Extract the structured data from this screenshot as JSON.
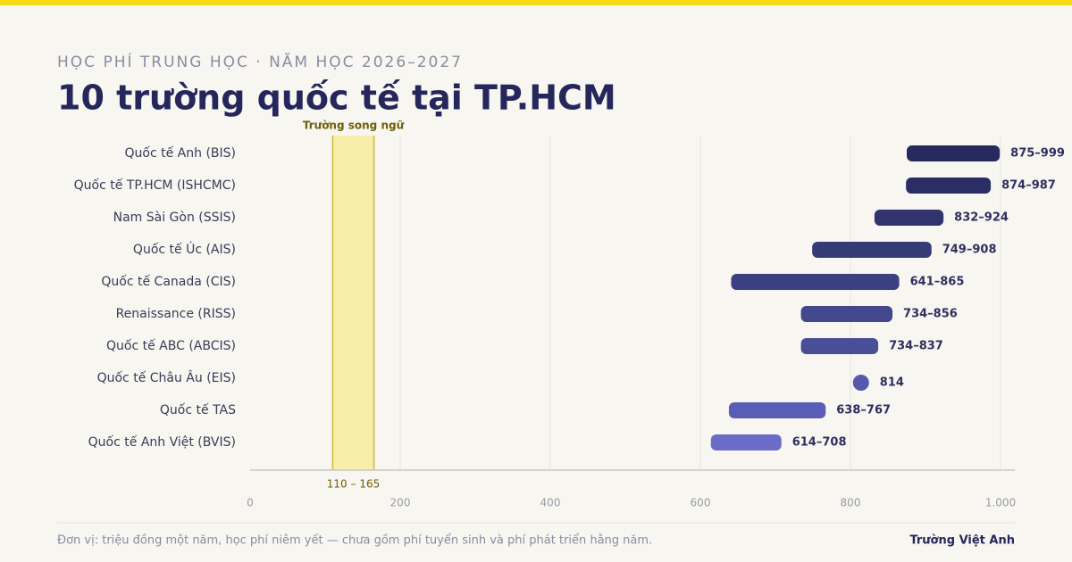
{
  "header": {
    "subtitle": "HỌC PHÍ TRUNG HỌC · NĂM HỌC 2026–2027",
    "title": "10 trường quốc tế tại TP.HCM"
  },
  "chart_data": {
    "type": "range-bar",
    "categories": [
      "Quốc tế Anh (BIS)",
      "Quốc tế TP.HCM (ISHCMC)",
      "Nam Sài Gòn (SSIS)",
      "Quốc tế Úc (AIS)",
      "Quốc tế Canada (CIS)",
      "Renaissance (RISS)",
      "Quốc tế ABC (ABCIS)",
      "Quốc tế Châu Âu (EIS)",
      "Quốc tế TAS",
      "Quốc tế Anh Việt (BVIS)"
    ],
    "low": [
      875,
      874,
      832,
      749,
      641,
      734,
      734,
      814,
      638,
      614
    ],
    "high": [
      999,
      987,
      924,
      908,
      865,
      856,
      837,
      null,
      767,
      708
    ],
    "value_labels": [
      "875–999",
      "874–987",
      "832–924",
      "749–908",
      "641–865",
      "734–856",
      "734–837",
      "814",
      "638–767",
      "614–708"
    ],
    "colors": [
      "#262a5e",
      "#2b2e66",
      "#30336d",
      "#363a77",
      "#3c3f80",
      "#43478b",
      "#4a4e96",
      "#5558ad",
      "#5a5db8",
      "#6a6cc8"
    ],
    "xlim": [
      0,
      1000
    ],
    "xticks": [
      0,
      200,
      400,
      600,
      800,
      {
        "value": 1000,
        "label": "1.000"
      }
    ],
    "grid": true,
    "reference_band": {
      "label": "Trường song ngữ",
      "range": [
        110,
        165
      ],
      "range_label": "110 – 165",
      "color": "#f6eeaa"
    }
  },
  "footer": {
    "note": "Đơn vị: triệu đồng một năm, học phí niêm yết — chưa gồm phí tuyển sinh và phí phát triển hằng năm.",
    "source": "Trường Việt Anh"
  }
}
